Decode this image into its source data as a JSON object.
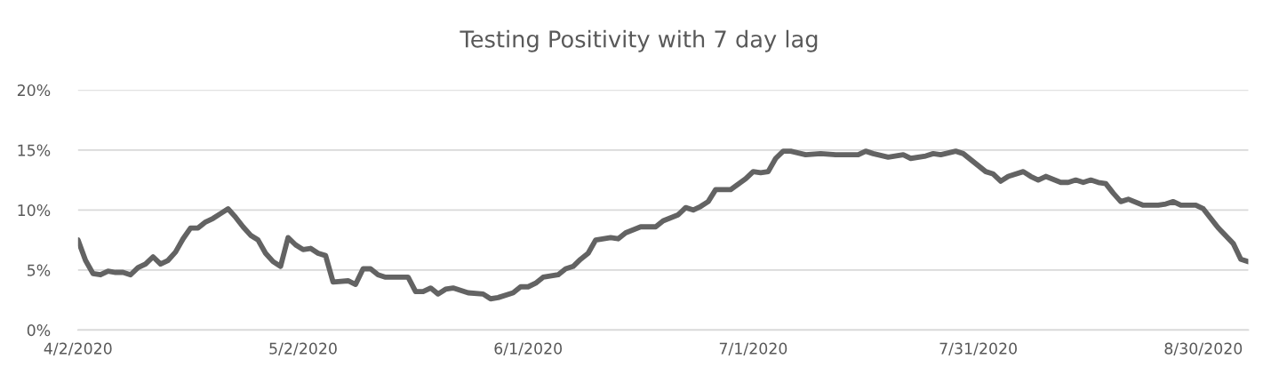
{
  "chart_data": {
    "type": "line",
    "title": "Testing Positivity with 7 day lag",
    "x": [
      "2020-04-02",
      "2020-04-03",
      "2020-04-04",
      "2020-04-05",
      "2020-04-06",
      "2020-04-07",
      "2020-04-08",
      "2020-04-09",
      "2020-04-10",
      "2020-04-11",
      "2020-04-12",
      "2020-04-13",
      "2020-04-14",
      "2020-04-15",
      "2020-04-16",
      "2020-04-17",
      "2020-04-18",
      "2020-04-19",
      "2020-04-20",
      "2020-04-21",
      "2020-04-22",
      "2020-04-23",
      "2020-04-24",
      "2020-04-25",
      "2020-04-26",
      "2020-04-27",
      "2020-04-28",
      "2020-04-29",
      "2020-04-30",
      "2020-05-01",
      "2020-05-02",
      "2020-05-03",
      "2020-05-04",
      "2020-05-05",
      "2020-05-06",
      "2020-05-08",
      "2020-05-09",
      "2020-05-10",
      "2020-05-11",
      "2020-05-12",
      "2020-05-13",
      "2020-05-16",
      "2020-05-17",
      "2020-05-18",
      "2020-05-19",
      "2020-05-20",
      "2020-05-21",
      "2020-05-22",
      "2020-05-24",
      "2020-05-26",
      "2020-05-27",
      "2020-05-28",
      "2020-05-30",
      "2020-05-31",
      "2020-06-01",
      "2020-06-02",
      "2020-06-03",
      "2020-06-05",
      "2020-06-06",
      "2020-06-07",
      "2020-06-08",
      "2020-06-09",
      "2020-06-10",
      "2020-06-12",
      "2020-06-13",
      "2020-06-14",
      "2020-06-16",
      "2020-06-18",
      "2020-06-19",
      "2020-06-21",
      "2020-06-22",
      "2020-06-23",
      "2020-06-24",
      "2020-06-25",
      "2020-06-26",
      "2020-06-28",
      "2020-06-30",
      "2020-07-01",
      "2020-07-02",
      "2020-07-03",
      "2020-07-04",
      "2020-07-05",
      "2020-07-06",
      "2020-07-08",
      "2020-07-10",
      "2020-07-12",
      "2020-07-15",
      "2020-07-16",
      "2020-07-17",
      "2020-07-19",
      "2020-07-21",
      "2020-07-22",
      "2020-07-24",
      "2020-07-25",
      "2020-07-26",
      "2020-07-28",
      "2020-07-29",
      "2020-07-31",
      "2020-08-01",
      "2020-08-02",
      "2020-08-03",
      "2020-08-04",
      "2020-08-06",
      "2020-08-07",
      "2020-08-08",
      "2020-08-09",
      "2020-08-11",
      "2020-08-12",
      "2020-08-13",
      "2020-08-14",
      "2020-08-15",
      "2020-08-16",
      "2020-08-17",
      "2020-08-18",
      "2020-08-19",
      "2020-08-20",
      "2020-08-22",
      "2020-08-24",
      "2020-08-25",
      "2020-08-26",
      "2020-08-27",
      "2020-08-29",
      "2020-08-30",
      "2020-09-01",
      "2020-09-03",
      "2020-09-04",
      "2020-09-05"
    ],
    "series": [
      {
        "color": "#636363",
        "values": [
          7.5,
          5.8,
          4.7,
          4.6,
          4.9,
          4.8,
          4.8,
          4.6,
          5.2,
          5.5,
          6.1,
          5.5,
          5.8,
          6.5,
          7.6,
          8.5,
          8.5,
          9.0,
          9.3,
          9.7,
          10.1,
          9.4,
          8.6,
          7.9,
          7.5,
          6.4,
          5.7,
          5.3,
          7.7,
          7.1,
          6.7,
          6.8,
          6.4,
          6.2,
          4.0,
          4.1,
          3.8,
          5.1,
          5.1,
          4.6,
          4.4,
          4.4,
          3.2,
          3.2,
          3.5,
          3.0,
          3.4,
          3.5,
          3.1,
          3.0,
          2.6,
          2.7,
          3.1,
          3.6,
          3.6,
          3.9,
          4.4,
          4.6,
          5.1,
          5.3,
          5.9,
          6.4,
          7.5,
          7.7,
          7.6,
          8.1,
          8.6,
          8.6,
          9.1,
          9.6,
          10.2,
          10.0,
          10.3,
          10.7,
          11.7,
          11.7,
          12.6,
          13.2,
          13.1,
          13.2,
          14.3,
          14.9,
          14.9,
          14.6,
          14.7,
          14.6,
          14.6,
          14.9,
          14.7,
          14.4,
          14.6,
          14.3,
          14.5,
          14.7,
          14.6,
          14.9,
          14.7,
          13.7,
          13.2,
          13.0,
          12.4,
          12.8,
          13.2,
          12.8,
          12.5,
          12.8,
          12.3,
          12.3,
          12.5,
          12.3,
          12.5,
          12.3,
          12.2,
          11.4,
          10.7,
          10.9,
          10.4,
          10.4,
          10.5,
          10.7,
          10.4,
          10.4,
          10.1,
          8.5,
          7.2,
          5.9,
          5.7
        ]
      }
    ],
    "xlim": [
      "2020-04-02",
      "2020-09-05"
    ],
    "xticks": [
      {
        "value": "2020-04-02",
        "label": "4/2/2020"
      },
      {
        "value": "2020-05-02",
        "label": "5/2/2020"
      },
      {
        "value": "2020-06-01",
        "label": "6/1/2020"
      },
      {
        "value": "2020-07-01",
        "label": "7/1/2020"
      },
      {
        "value": "2020-07-31",
        "label": "7/31/2020"
      },
      {
        "value": "2020-08-30",
        "label": "8/30/2020"
      }
    ],
    "ylim": [
      0,
      20
    ],
    "yticks": [
      {
        "value": 0,
        "label": "0%"
      },
      {
        "value": 5,
        "label": "5%"
      },
      {
        "value": 10,
        "label": "10%"
      },
      {
        "value": 15,
        "label": "15%"
      },
      {
        "value": 20,
        "label": "20%"
      }
    ],
    "grid": "y",
    "marker": "none",
    "line_style": "solid"
  }
}
